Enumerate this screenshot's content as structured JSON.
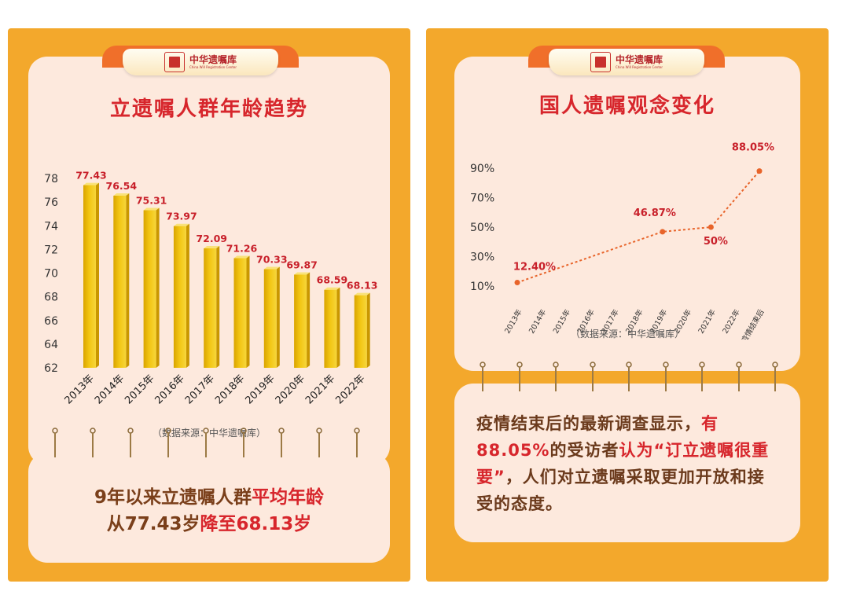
{
  "brand": {
    "name_cn": "中华遗嘱库",
    "name_en": "China Will Registration Center"
  },
  "left": {
    "title": "立遗嘱人群年龄趋势",
    "source": "（数据来源：中华遗嘱库）",
    "summary": {
      "line1_a": "9年以来立遗嘱人群",
      "line1_b": "平均年龄",
      "line2_a": "从77.43岁",
      "line2_b": "降至68.13岁"
    }
  },
  "right": {
    "title": "国人遗嘱观念变化",
    "source": "（数据来源：中华遗嘱库）",
    "text": {
      "p1": "疫情结束后的最新调查显示，",
      "p2": "有88.05%",
      "p3": "的受访者",
      "p4": "认为“订立遗嘱很重要”",
      "p5": "，人们对立遗嘱采取更加开放和接受的态度。"
    }
  },
  "chart_data": [
    {
      "type": "bar",
      "title": "立遗嘱人群年龄趋势",
      "categories": [
        "2013年",
        "2014年",
        "2015年",
        "2016年",
        "2017年",
        "2018年",
        "2019年",
        "2020年",
        "2021年",
        "2022年"
      ],
      "values": [
        77.43,
        76.54,
        75.31,
        73.97,
        72.09,
        71.26,
        70.33,
        69.87,
        68.59,
        68.13
      ],
      "value_labels": [
        "77.43",
        "76.54",
        "75.31",
        "73.97",
        "72.09",
        "71.26",
        "70.33",
        "69.87",
        "68.59",
        "68.13"
      ],
      "yticks": [
        "78",
        "76",
        "74",
        "72",
        "70",
        "68",
        "66",
        "64",
        "62"
      ],
      "ylim": [
        62,
        78
      ],
      "bar_color": "#f2c512",
      "label_color": "#c8202a",
      "grid": false
    },
    {
      "type": "line",
      "title": "国人遗嘱观念变化",
      "categories": [
        "2013年",
        "2014年",
        "2015年",
        "2016年",
        "2017年",
        "2018年",
        "2019年",
        "2020年",
        "2021年",
        "2022年",
        "疫情结束后"
      ],
      "points": [
        {
          "category": "2013年",
          "value": 12.4,
          "label": "12.40%"
        },
        {
          "category": "2019年",
          "value": 46.87,
          "label": "46.87%"
        },
        {
          "category": "2021年",
          "value": 50,
          "label": "50%"
        },
        {
          "category": "疫情结束后",
          "value": 88.05,
          "label": "88.05%"
        }
      ],
      "yticks": [
        "10%",
        "30%",
        "50%",
        "70%",
        "90%"
      ],
      "ytick_values": [
        10,
        30,
        50,
        70,
        90
      ],
      "line_style": "dotted",
      "line_color": "#e8642a",
      "label_color": "#c8202a",
      "grid": false
    }
  ]
}
